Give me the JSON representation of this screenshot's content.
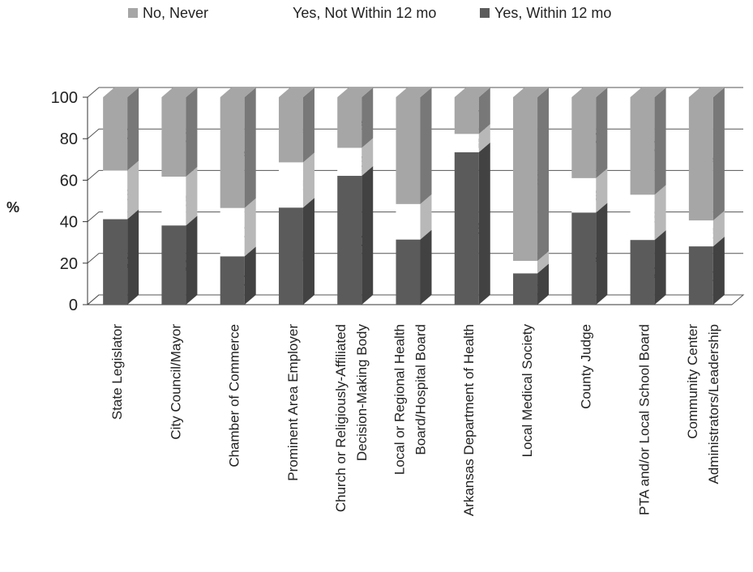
{
  "chart_data": {
    "type": "bar",
    "stacked": true,
    "three_d": true,
    "ylabel": "%",
    "ylim": [
      0,
      100
    ],
    "yticks": [
      0,
      20,
      40,
      60,
      80,
      100
    ],
    "grid": true,
    "legend_position": "top",
    "categories": [
      [
        "State Legislator"
      ],
      [
        "City Council/Mayor"
      ],
      [
        "Chamber of Commerce"
      ],
      [
        "Prominent Area Employer"
      ],
      [
        "Church or Religiously-Affiliated",
        "Decision-Making Body"
      ],
      [
        "Local or Regional Health",
        "Board/Hospital Board"
      ],
      [
        "Arkansas Department of Health"
      ],
      [
        "Local Medical Society"
      ],
      [
        "County Judge"
      ],
      [
        "PTA and/or Local School Board"
      ],
      [
        "Community Center",
        "Administrators/Leadership"
      ]
    ],
    "series": [
      {
        "name": "Yes, Within 12 mo",
        "color": "#5b5b5b",
        "values": [
          41.2,
          38.2,
          23.3,
          46.8,
          62.1,
          31.4,
          73.5,
          15.1,
          44.4,
          31.2,
          28.1
        ]
      },
      {
        "name": "Yes, Not Within 12 mo",
        "color": "#ffffff",
        "values": [
          23.5,
          23.5,
          23.3,
          21.8,
          13.5,
          17.1,
          8.8,
          6.0,
          16.6,
          21.8,
          12.5
        ]
      },
      {
        "name": "No, Never",
        "color": "#a6a6a6",
        "values": [
          35.3,
          38.3,
          53.4,
          31.4,
          24.4,
          51.5,
          17.7,
          78.9,
          39.0,
          47.0,
          59.4
        ]
      }
    ],
    "legend_order": [
      "No, Never",
      "Yes, Not Within 12 mo",
      "Yes, Within 12 mo"
    ]
  }
}
